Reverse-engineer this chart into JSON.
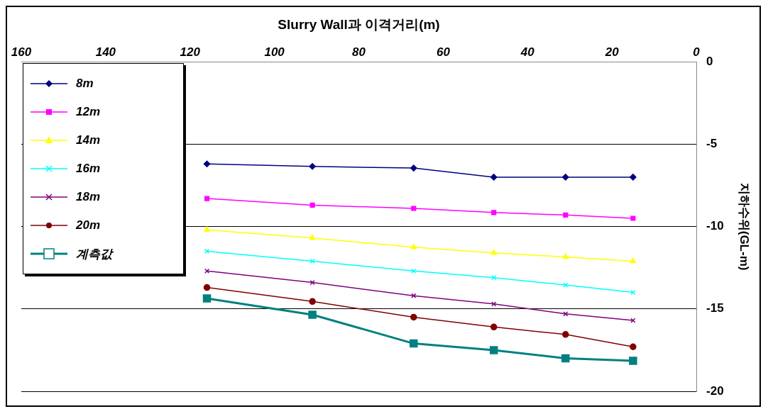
{
  "chart_data": {
    "type": "line",
    "xlabel": "Slurry Wall과 이격거리(m)",
    "ylabel": "지하수위(GL-m)",
    "xlim": [
      160,
      0
    ],
    "xticks": [
      160,
      140,
      120,
      100,
      80,
      60,
      40,
      20,
      0
    ],
    "ylim": [
      -20,
      0
    ],
    "yticks": [
      -20,
      -15,
      -10,
      -5,
      0
    ],
    "grid": "y",
    "legend": "top left",
    "x": [
      116,
      91,
      67,
      48,
      31,
      15
    ],
    "series": [
      {
        "name": "8m",
        "color": "#000080",
        "marker": "diamond",
        "values": [
          -6.2,
          -6.35,
          -6.45,
          -7.0,
          -7.0,
          -7.0
        ]
      },
      {
        "name": "12m",
        "color": "#ff00ff",
        "marker": "square",
        "values": [
          -8.3,
          -8.7,
          -8.9,
          -9.15,
          -9.3,
          -9.5
        ]
      },
      {
        "name": "14m",
        "color": "#ffff00",
        "marker": "triangle",
        "values": [
          -10.2,
          -10.7,
          -11.25,
          -11.6,
          -11.85,
          -12.1
        ]
      },
      {
        "name": "16m",
        "color": "#00ffff",
        "marker": "cross",
        "values": [
          -11.5,
          -12.1,
          -12.7,
          -13.1,
          -13.55,
          -14.0
        ]
      },
      {
        "name": "18m",
        "color": "#800080",
        "marker": "cross",
        "values": [
          -12.7,
          -13.4,
          -14.2,
          -14.7,
          -15.3,
          -15.7
        ]
      },
      {
        "name": "20m",
        "color": "#800000",
        "marker": "circle",
        "values": [
          -13.7,
          -14.55,
          -15.5,
          -16.1,
          -16.55,
          -17.3
        ]
      },
      {
        "name": "계측값",
        "color": "#008080",
        "marker": "square",
        "values": [
          -14.36,
          -15.35,
          -17.1,
          -17.5,
          -18.0,
          -18.15
        ]
      }
    ]
  }
}
